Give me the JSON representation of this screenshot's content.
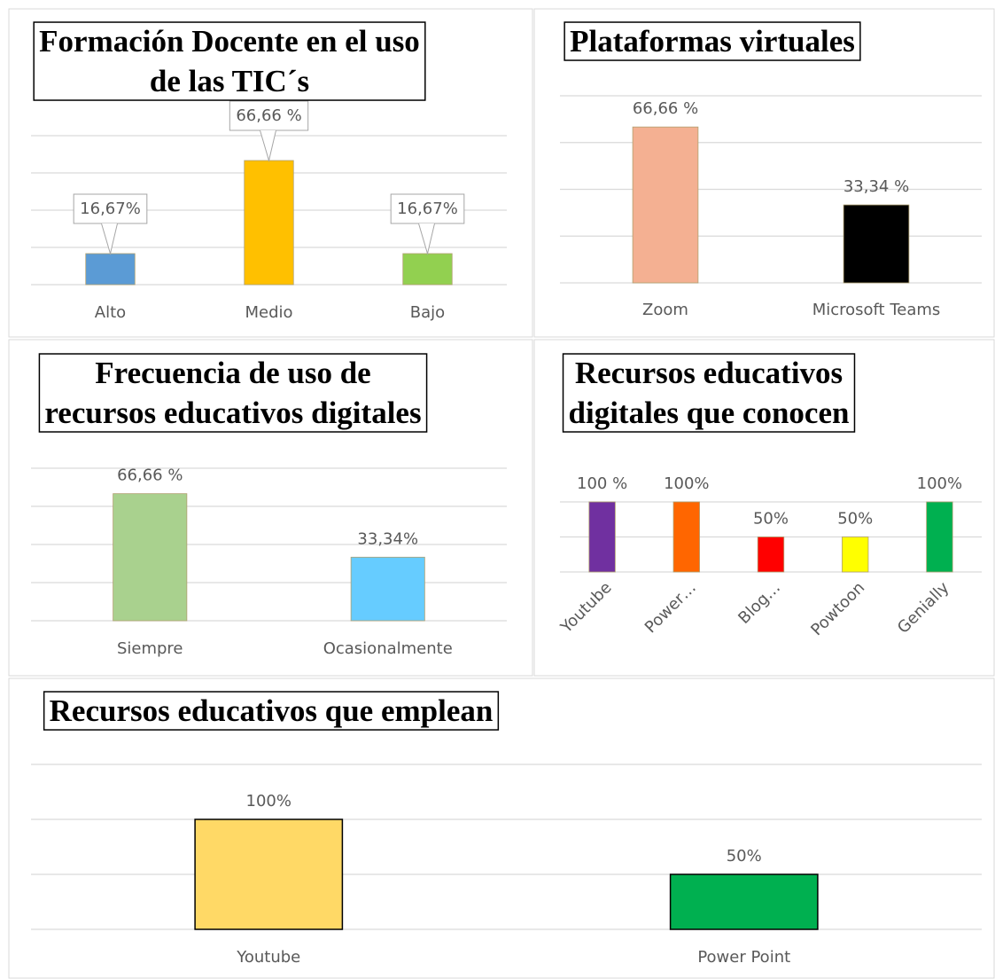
{
  "chart_data": [
    {
      "type": "bar",
      "title": [
        "Formación Docente en el uso",
        "de las TIC´s"
      ],
      "categories": [
        "Alto",
        "Medio",
        "Bajo"
      ],
      "values": [
        16.67,
        66.66,
        16.67
      ],
      "value_labels": [
        "16,67%",
        "66,66 %",
        "16,67%"
      ],
      "colors": [
        "#5b9bd5",
        "#ffc000",
        "#92d050"
      ],
      "ylim": [
        0,
        80
      ],
      "yticks": [
        0,
        20,
        40,
        60,
        80
      ],
      "grid": true,
      "label_style": "callout"
    },
    {
      "type": "bar",
      "title": [
        "Plataformas virtuales"
      ],
      "categories": [
        "Zoom",
        "Microsoft Teams"
      ],
      "values": [
        66.66,
        33.34
      ],
      "value_labels": [
        "66,66 %",
        "33,34 %"
      ],
      "colors": [
        "#f4b092",
        "#000000"
      ],
      "ylim": [
        0,
        80
      ],
      "yticks": [
        0,
        20,
        40,
        60,
        80
      ],
      "grid": true
    },
    {
      "type": "bar",
      "title": [
        "Frecuencia de uso de",
        "recursos educativos digitales"
      ],
      "categories": [
        "Siempre",
        "Ocasionalmente"
      ],
      "values": [
        66.66,
        33.34
      ],
      "value_labels": [
        "66,66 %",
        "33,34%"
      ],
      "colors": [
        "#a9d18e",
        "#66ccff"
      ],
      "ylim": [
        0,
        80
      ],
      "yticks": [
        0,
        20,
        40,
        60,
        80
      ],
      "grid": true
    },
    {
      "type": "bar",
      "title": [
        "Recursos educativos",
        "digitales que conocen"
      ],
      "categories": [
        "Youtube",
        "Power…",
        "Blog…",
        "Powtoon",
        "Genially"
      ],
      "values": [
        100,
        100,
        50,
        50,
        100
      ],
      "value_labels": [
        "100 %",
        "100%",
        "50%",
        "50%",
        "100%"
      ],
      "colors": [
        "#7030a0",
        "#ff6600",
        "#ff0000",
        "#ffff00",
        "#00b050"
      ],
      "ylim": [
        0,
        100
      ],
      "yticks": [
        0,
        50,
        100
      ],
      "grid": true,
      "rotate_labels": true
    },
    {
      "type": "bar",
      "title": [
        "Recursos educativos que emplean"
      ],
      "categories": [
        "Youtube",
        "Power Point"
      ],
      "values": [
        100,
        50
      ],
      "value_labels": [
        "100%",
        "50%"
      ],
      "colors": [
        "#ffd966",
        "#00b050"
      ],
      "edgecolor": "#000000",
      "ylim": [
        0,
        150
      ],
      "yticks": [
        0,
        50,
        100,
        150
      ],
      "grid": true
    }
  ]
}
